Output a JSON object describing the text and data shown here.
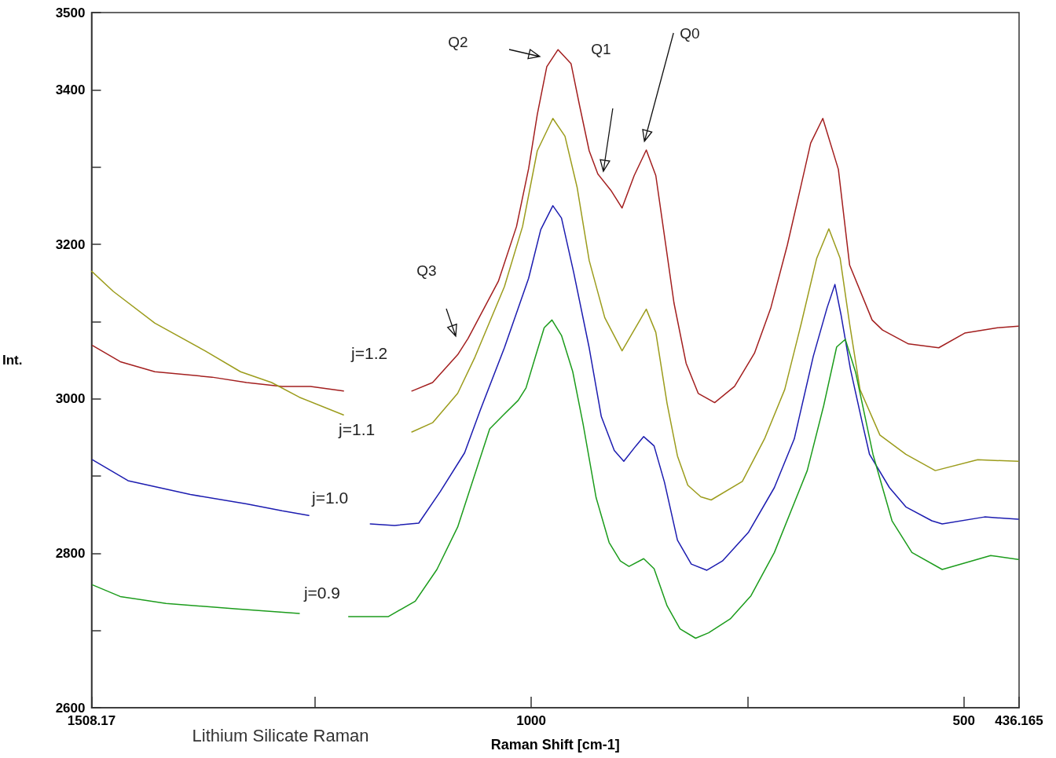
{
  "chart_data": {
    "type": "line",
    "xlabel": "Raman Shift [cm-1]",
    "ylabel": "Int.",
    "xlim": [
      1508.17,
      436.165
    ],
    "ylim": [
      2600,
      3500
    ],
    "xticks": [
      1508.17,
      {
        "value": 1250,
        "label": null
      },
      1000,
      {
        "value": 750,
        "label": null
      },
      500,
      436.165
    ],
    "yticks": [
      2600,
      {
        "value": 2700,
        "label": null
      },
      2800,
      {
        "value": 2900,
        "label": null
      },
      3000,
      {
        "value": 3100,
        "label": null
      },
      3200,
      {
        "value": 3300,
        "label": null
      },
      3400,
      3500
    ],
    "marker": "none",
    "line_style": "solid",
    "annotations": [
      "Q2",
      "Q1",
      "Q0",
      "Q3",
      "Lithium Silicate Raman"
    ],
    "series": [
      {
        "name": "j=1.2",
        "color": "#a31f1f",
        "x": [
          1507,
          1475,
          1435,
          1369,
          1329,
          1288,
          1255,
          1217,
          1180,
          1138,
          1114,
          1085,
          1073,
          1038,
          1017,
          1003,
          993,
          982,
          969,
          954,
          944,
          933,
          923,
          908,
          895,
          881,
          867,
          856,
          845,
          835,
          821,
          807,
          788,
          765,
          742,
          723,
          704,
          690,
          677,
          663,
          645,
          632,
          606,
          594,
          564,
          529,
          499,
          461,
          437
        ],
        "values": [
          3069,
          3048,
          3035,
          3028,
          3021,
          3016,
          3016,
          3010,
          null,
          3010,
          3021,
          3057,
          3078,
          3152,
          3223,
          3298,
          3368,
          3430,
          3452,
          3434,
          3379,
          3321,
          3291,
          3270,
          3247,
          3289,
          3322,
          3289,
          3203,
          3124,
          3046,
          3007,
          2995,
          3016,
          3059,
          3118,
          3199,
          3267,
          3331,
          3363,
          3297,
          3173,
          3102,
          3089,
          3071,
          3066,
          3085,
          3092,
          3094
        ]
      },
      {
        "name": "j=1.1",
        "color": "#9c9c1c",
        "x": [
          1508,
          1483,
          1435,
          1377,
          1336,
          1300,
          1268,
          1217,
          1180,
          1138,
          1114,
          1085,
          1065,
          1031,
          1010,
          993,
          975,
          961,
          947,
          933,
          915,
          895,
          867,
          856,
          843,
          831,
          819,
          804,
          792,
          756,
          730,
          707,
          688,
          670,
          656,
          643,
          632,
          620,
          597,
          567,
          533,
          484,
          437
        ],
        "values": [
          3165,
          3139,
          3098,
          3062,
          3035,
          3021,
          3002,
          2979,
          null,
          2957,
          2969,
          3007,
          3054,
          3145,
          3223,
          3321,
          3363,
          3340,
          3274,
          3179,
          3105,
          3062,
          3116,
          3086,
          2994,
          2926,
          2888,
          2873,
          2869,
          2893,
          2949,
          3012,
          3097,
          3182,
          3220,
          3182,
          3097,
          3012,
          2953,
          2928,
          2907,
          2921,
          2919
        ]
      },
      {
        "name": "j=1.0",
        "color": "#1c1cb0",
        "x": [
          1507,
          1466,
          1394,
          1329,
          1288,
          1257,
          1220,
          1186,
          1158,
          1130,
          1105,
          1077,
          1059,
          1031,
          1003,
          989,
          975,
          965,
          951,
          933,
          919,
          904,
          893,
          879,
          870,
          858,
          846,
          831,
          815,
          797,
          779,
          749,
          719,
          696,
          674,
          658,
          649,
          642,
          631,
          617,
          609,
          586,
          567,
          537,
          525,
          476,
          437
        ],
        "values": [
          2921,
          2894,
          2876,
          2864,
          2855,
          2849,
          null,
          2838,
          2836,
          2839,
          2880,
          2930,
          2985,
          3066,
          3156,
          3219,
          3250,
          3234,
          3164,
          3066,
          2977,
          2933,
          2919,
          2939,
          2951,
          2939,
          2892,
          2817,
          2786,
          2778,
          2790,
          2827,
          2885,
          2948,
          3055,
          3118,
          3148,
          3109,
          3038,
          2967,
          2928,
          2885,
          2860,
          2842,
          2838,
          2847,
          2844
        ]
      },
      {
        "name": "j=0.9",
        "color": "#1c9c1c",
        "x": [
          1507,
          1475,
          1422,
          1340,
          1268,
          1240,
          1211,
          1165,
          1134,
          1109,
          1085,
          1048,
          1033,
          1015,
          1006,
          995,
          985,
          976,
          965,
          952,
          940,
          925,
          910,
          897,
          887,
          870,
          858,
          843,
          828,
          810,
          795,
          770,
          746,
          719,
          681,
          662,
          647,
          637,
          625,
          605,
          583,
          560,
          525,
          469,
          437
        ],
        "values": [
          2759,
          2744,
          2735,
          2728,
          2722,
          null,
          2718,
          2718,
          2738,
          2779,
          2834,
          2961,
          2978,
          2998,
          3014,
          3055,
          3092,
          3102,
          3082,
          3035,
          2967,
          2872,
          2814,
          2790,
          2783,
          2793,
          2780,
          2732,
          2702,
          2690,
          2697,
          2715,
          2745,
          2801,
          2907,
          2991,
          3067,
          3077,
          3034,
          2928,
          2842,
          2801,
          2779,
          2797,
          2792
        ]
      }
    ]
  }
}
